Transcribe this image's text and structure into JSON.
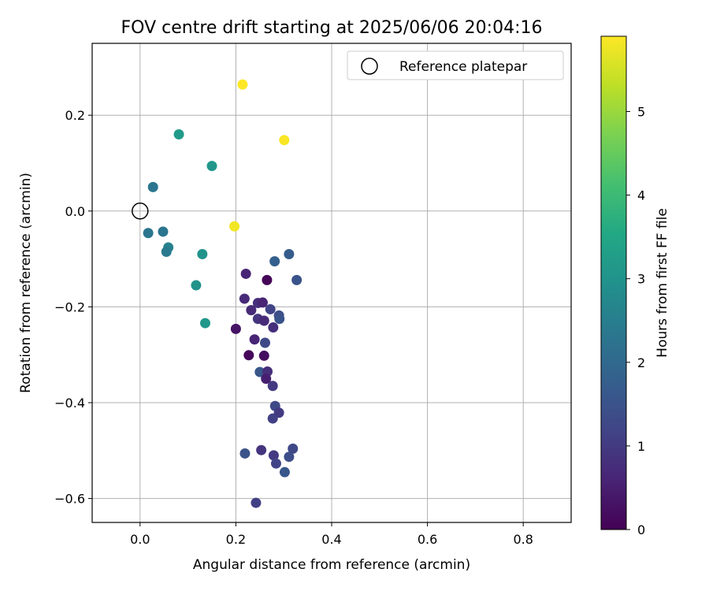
{
  "chart_data": {
    "type": "scatter",
    "title": "FOV centre drift starting at 2025/06/06 20:04:16",
    "xlabel": "Angular distance from reference (arcmin)",
    "ylabel": "Rotation from reference (arcmin)",
    "xlim": [
      -0.1,
      0.9
    ],
    "ylim": [
      -0.65,
      0.35
    ],
    "xticks": [
      0.0,
      0.2,
      0.4,
      0.6,
      0.8
    ],
    "xtick_labels": [
      "0.0",
      "0.2",
      "0.4",
      "0.6",
      "0.8"
    ],
    "yticks": [
      0.2,
      0.0,
      -0.2,
      -0.4,
      -0.6
    ],
    "ytick_labels": [
      "0.2",
      "0.0",
      "−0.2",
      "−0.4",
      "−0.6"
    ],
    "grid": true,
    "legend": {
      "position": "top-right",
      "entries": [
        {
          "label": "Reference platepar",
          "marker": "open-circle",
          "x": 0.0,
          "y": 0.0
        }
      ]
    },
    "colorbar": {
      "label": "Hours from first FF file",
      "colormap": "viridis",
      "range": [
        0,
        5.9
      ],
      "ticks": [
        0,
        1,
        2,
        3,
        4,
        5
      ],
      "tick_labels": [
        "0",
        "1",
        "2",
        "3",
        "4",
        "5"
      ]
    },
    "points": [
      {
        "x": 0.214,
        "y": 0.264,
        "t": 5.9
      },
      {
        "x": 0.301,
        "y": 0.148,
        "t": 5.85
      },
      {
        "x": 0.197,
        "y": -0.032,
        "t": 5.8
      },
      {
        "x": 0.081,
        "y": 0.16,
        "t": 3.2
      },
      {
        "x": 0.15,
        "y": 0.094,
        "t": 3.1
      },
      {
        "x": 0.13,
        "y": -0.09,
        "t": 3.0
      },
      {
        "x": 0.117,
        "y": -0.155,
        "t": 3.0
      },
      {
        "x": 0.136,
        "y": -0.234,
        "t": 3.1
      },
      {
        "x": 0.027,
        "y": 0.05,
        "t": 2.3
      },
      {
        "x": 0.017,
        "y": -0.046,
        "t": 2.3
      },
      {
        "x": 0.048,
        "y": -0.043,
        "t": 2.3
      },
      {
        "x": 0.059,
        "y": -0.076,
        "t": 2.6
      },
      {
        "x": 0.055,
        "y": -0.085,
        "t": 2.4
      },
      {
        "x": 0.281,
        "y": -0.105,
        "t": 1.8
      },
      {
        "x": 0.311,
        "y": -0.09,
        "t": 1.7
      },
      {
        "x": 0.327,
        "y": -0.144,
        "t": 1.5
      },
      {
        "x": 0.221,
        "y": -0.131,
        "t": 0.6
      },
      {
        "x": 0.265,
        "y": -0.144,
        "t": 0.05
      },
      {
        "x": 0.218,
        "y": -0.183,
        "t": 0.7
      },
      {
        "x": 0.232,
        "y": -0.207,
        "t": 0.7
      },
      {
        "x": 0.246,
        "y": -0.192,
        "t": 0.8
      },
      {
        "x": 0.256,
        "y": -0.191,
        "t": 0.6
      },
      {
        "x": 0.272,
        "y": -0.205,
        "t": 1.2
      },
      {
        "x": 0.29,
        "y": -0.218,
        "t": 1.4
      },
      {
        "x": 0.291,
        "y": -0.225,
        "t": 1.5
      },
      {
        "x": 0.246,
        "y": -0.225,
        "t": 0.9
      },
      {
        "x": 0.259,
        "y": -0.229,
        "t": 0.7
      },
      {
        "x": 0.278,
        "y": -0.243,
        "t": 0.8
      },
      {
        "x": 0.2,
        "y": -0.246,
        "t": 0.3
      },
      {
        "x": 0.239,
        "y": -0.268,
        "t": 0.6
      },
      {
        "x": 0.261,
        "y": -0.275,
        "t": 1.3
      },
      {
        "x": 0.227,
        "y": -0.301,
        "t": 0.1
      },
      {
        "x": 0.259,
        "y": -0.302,
        "t": 0.2
      },
      {
        "x": 0.25,
        "y": -0.336,
        "t": 1.6
      },
      {
        "x": 0.266,
        "y": -0.335,
        "t": 0.8
      },
      {
        "x": 0.263,
        "y": -0.35,
        "t": 0.5
      },
      {
        "x": 0.277,
        "y": -0.365,
        "t": 1.0
      },
      {
        "x": 0.282,
        "y": -0.407,
        "t": 1.3
      },
      {
        "x": 0.29,
        "y": -0.421,
        "t": 1.0
      },
      {
        "x": 0.277,
        "y": -0.433,
        "t": 1.1
      },
      {
        "x": 0.219,
        "y": -0.506,
        "t": 1.5
      },
      {
        "x": 0.253,
        "y": -0.499,
        "t": 0.9
      },
      {
        "x": 0.279,
        "y": -0.51,
        "t": 1.0
      },
      {
        "x": 0.319,
        "y": -0.496,
        "t": 1.3
      },
      {
        "x": 0.311,
        "y": -0.513,
        "t": 1.4
      },
      {
        "x": 0.284,
        "y": -0.527,
        "t": 1.2
      },
      {
        "x": 0.302,
        "y": -0.545,
        "t": 1.6
      },
      {
        "x": 0.242,
        "y": -0.609,
        "t": 1.1
      }
    ]
  }
}
